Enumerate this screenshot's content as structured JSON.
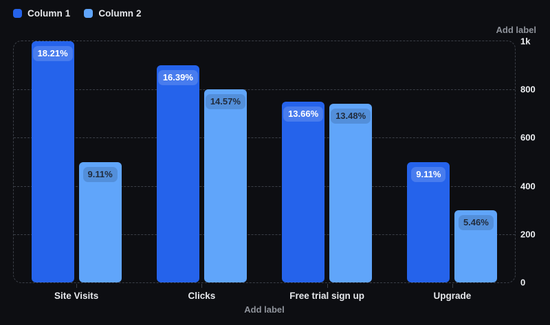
{
  "chart_data": {
    "type": "bar",
    "title": "",
    "categories": [
      "Site Visits",
      "Clicks",
      "Free trial sign up",
      "Upgrade"
    ],
    "series": [
      {
        "name": "Column 1",
        "color": "#2563eb",
        "values": [
          1000,
          900,
          750,
          500
        ],
        "bar_labels": [
          "18.21%",
          "16.39%",
          "13.66%",
          "9.11%"
        ]
      },
      {
        "name": "Column 2",
        "color": "#60a5fa",
        "values": [
          500,
          800,
          740,
          300
        ],
        "bar_labels": [
          "9.11%",
          "14.57%",
          "13.48%",
          "5.46%"
        ]
      }
    ],
    "y_axis": {
      "title": "Add label",
      "side": "right",
      "min": 0,
      "max": 1000,
      "tick_labels": [
        "1k",
        "800",
        "600",
        "400",
        "200",
        "0"
      ],
      "tick_values": [
        1000,
        800,
        600,
        400,
        200,
        0
      ]
    },
    "x_axis": {
      "title": "Add label"
    },
    "legend": {
      "position": "top-left",
      "entries": [
        "Column 1",
        "Column 2"
      ]
    },
    "grid": "horizontal-dashed",
    "colors": {
      "background": "#0d0e12",
      "gridline": "#3b3f47",
      "series1": "#2563eb",
      "series2": "#60a5fa"
    }
  }
}
